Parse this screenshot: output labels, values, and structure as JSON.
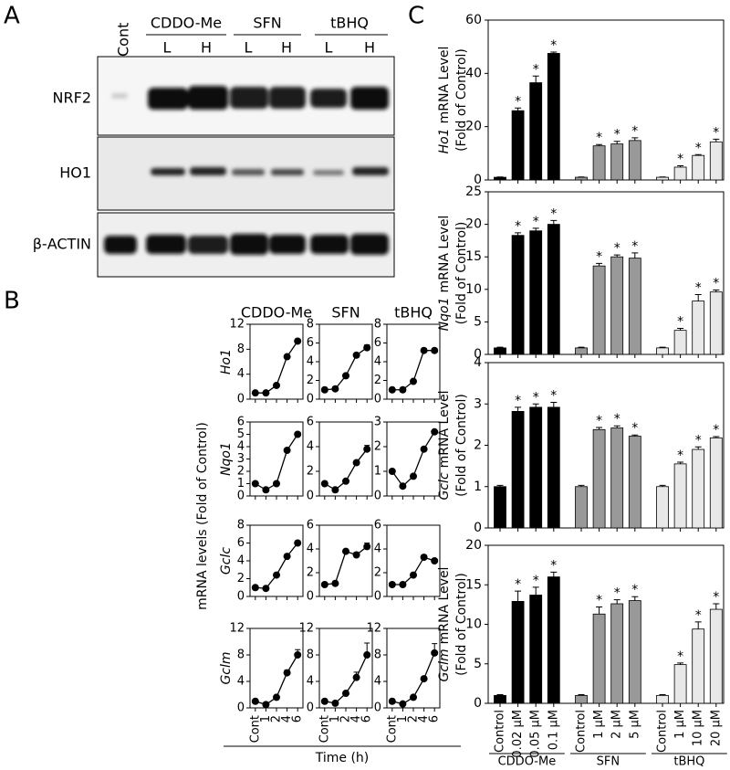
{
  "figure": {
    "panel_labels": [
      "A",
      "B",
      "C"
    ]
  },
  "blot": {
    "control": "Cont",
    "treatments": [
      {
        "name": "CDDO-Me",
        "doses": [
          "L",
          "H"
        ]
      },
      {
        "name": "SFN",
        "doses": [
          "L",
          "H"
        ]
      },
      {
        "name": "tBHQ",
        "doses": [
          "L",
          "H"
        ]
      }
    ],
    "rows": [
      "NRF2",
      "HO1",
      "β-ACTIN"
    ]
  },
  "panel_b": {
    "y_label": "mRNA levels (Fold of Control)",
    "x_label": "Time (h)"
  },
  "chart_data": [
    {
      "type": "line",
      "title": "CDDO-Me",
      "ylabel": "Ho1",
      "categories": [
        null,
        null,
        null,
        null,
        null
      ],
      "values": [
        1,
        1,
        2.2,
        6.8,
        9.3
      ],
      "errors": [
        0.1,
        0.1,
        0.2,
        0.3,
        0.3
      ],
      "ylim": [
        0,
        12
      ],
      "yticks": [
        0,
        4,
        8,
        12
      ],
      "color": "#000000"
    },
    {
      "type": "line",
      "title": "SFN",
      "categories": [
        null,
        null,
        null,
        null,
        null
      ],
      "values": [
        1,
        1.1,
        2.5,
        4.7,
        5.5
      ],
      "errors": [
        0.1,
        0.1,
        0.1,
        0.2,
        0.3
      ],
      "ylim": [
        0,
        8
      ],
      "yticks": [
        0,
        2,
        4,
        6,
        8
      ],
      "color": "#000000"
    },
    {
      "type": "line",
      "title": "tBHQ",
      "categories": [
        null,
        null,
        null,
        null,
        null
      ],
      "values": [
        1,
        1,
        1.9,
        5.2,
        5.2
      ],
      "errors": [
        0.1,
        0.1,
        0.1,
        0.1,
        0.1
      ],
      "ylim": [
        0,
        8
      ],
      "yticks": [
        0,
        2,
        4,
        6,
        8
      ],
      "color": "#000000"
    },
    {
      "type": "line",
      "ylabel": "Nqo1",
      "categories": [
        null,
        null,
        null,
        null,
        null
      ],
      "values": [
        1,
        0.5,
        1,
        3.7,
        5
      ],
      "errors": [
        0.05,
        0.05,
        0.05,
        0.1,
        0.1
      ],
      "ylim": [
        0,
        6
      ],
      "yticks": [
        0,
        1,
        2,
        3,
        4,
        5,
        6
      ],
      "color": "#000000"
    },
    {
      "type": "line",
      "categories": [
        null,
        null,
        null,
        null,
        null
      ],
      "values": [
        1,
        0.5,
        1.2,
        2.7,
        3.8
      ],
      "errors": [
        0.05,
        0.05,
        0.1,
        0.1,
        0.3
      ],
      "ylim": [
        0,
        6
      ],
      "yticks": [
        0,
        2,
        4,
        6
      ],
      "color": "#000000"
    },
    {
      "type": "line",
      "categories": [
        null,
        null,
        null,
        null,
        null
      ],
      "values": [
        1,
        0.4,
        0.8,
        1.9,
        2.6
      ],
      "errors": [
        0.03,
        0.03,
        0.03,
        0.05,
        0.05
      ],
      "ylim": [
        0,
        3
      ],
      "yticks": [
        0,
        1,
        2,
        3
      ],
      "color": "#000000"
    },
    {
      "type": "line",
      "ylabel": "Gclc",
      "categories": [
        null,
        null,
        null,
        null,
        null
      ],
      "values": [
        1,
        0.9,
        2.4,
        4.5,
        6
      ],
      "errors": [
        0.1,
        0.1,
        0.1,
        0.1,
        0.1
      ],
      "ylim": [
        0,
        8
      ],
      "yticks": [
        0,
        2,
        4,
        6,
        8
      ],
      "color": "#000000"
    },
    {
      "type": "line",
      "categories": [
        null,
        null,
        null,
        null,
        null
      ],
      "values": [
        1,
        1.1,
        3.8,
        3.5,
        4.2
      ],
      "errors": [
        0.05,
        0.05,
        0.1,
        0.2,
        0.3
      ],
      "ylim": [
        0,
        6
      ],
      "yticks": [
        0,
        2,
        4,
        6
      ],
      "color": "#000000"
    },
    {
      "type": "line",
      "categories": [
        null,
        null,
        null,
        null,
        null
      ],
      "values": [
        1,
        1,
        1.8,
        3.3,
        3
      ],
      "errors": [
        0.05,
        0.05,
        0.15,
        0.2,
        0.1
      ],
      "ylim": [
        0,
        6
      ],
      "yticks": [
        0,
        2,
        4,
        6
      ],
      "color": "#000000"
    },
    {
      "type": "line",
      "ylabel": "Gclm",
      "categories": [
        "Cont",
        "1",
        "2",
        "4",
        "6"
      ],
      "values": [
        1,
        0.5,
        1.6,
        5.3,
        8
      ],
      "errors": [
        0.1,
        0.1,
        0.2,
        0.4,
        0.8
      ],
      "ylim": [
        0,
        12
      ],
      "yticks": [
        0,
        4,
        8,
        12
      ],
      "color": "#000000"
    },
    {
      "type": "line",
      "categories": [
        "Cont",
        "1",
        "2",
        "4",
        "6"
      ],
      "values": [
        1,
        0.7,
        2.2,
        4.6,
        8
      ],
      "errors": [
        0.1,
        0.1,
        0.2,
        0.8,
        1.8
      ],
      "ylim": [
        0,
        12
      ],
      "yticks": [
        0,
        4,
        8,
        12
      ],
      "color": "#000000"
    },
    {
      "type": "line",
      "categories": [
        "Cont",
        "1",
        "2",
        "4",
        "6"
      ],
      "values": [
        1,
        0.6,
        1.6,
        4.4,
        8.3
      ],
      "errors": [
        0.1,
        0.1,
        0.2,
        0.3,
        1.4
      ],
      "ylim": [
        0,
        12
      ],
      "yticks": [
        0,
        4,
        8,
        12
      ],
      "color": "#000000"
    },
    {
      "type": "bar",
      "ylabel": {
        "gene": "Ho1",
        "text": "mRNA Level",
        "unit": "(Fold of Control)"
      },
      "ylim": [
        0,
        60
      ],
      "yticks": [
        0,
        20,
        40,
        60
      ],
      "groups": [
        {
          "color": "#000000",
          "values": [
            1,
            26,
            36.5,
            47.5
          ],
          "errors": [
            0.1,
            1,
            2.5,
            0.5
          ],
          "annotations": [
            null,
            "*",
            "*",
            "*"
          ]
        },
        {
          "color": "#999999",
          "values": [
            1,
            12.8,
            13.5,
            14.8
          ],
          "errors": [
            0.1,
            0.5,
            1,
            1
          ],
          "annotations": [
            null,
            "*",
            "*",
            "*"
          ]
        },
        {
          "color": "#e8e8e8",
          "values": [
            1,
            4.8,
            9.2,
            14.3
          ],
          "errors": [
            0.1,
            0.5,
            0.3,
            1
          ],
          "annotations": [
            null,
            "*",
            "*",
            "*"
          ]
        }
      ]
    },
    {
      "type": "bar",
      "ylabel": {
        "gene": "Nqo1",
        "text": "mRNA Level",
        "unit": "(Fold of Control)"
      },
      "ylim": [
        0,
        25
      ],
      "yticks": [
        0,
        5,
        10,
        15,
        20,
        25
      ],
      "groups": [
        {
          "color": "#000000",
          "values": [
            1,
            18.3,
            19,
            20
          ],
          "errors": [
            0.1,
            0.4,
            0.4,
            0.6
          ],
          "annotations": [
            null,
            "*",
            "*",
            "*"
          ]
        },
        {
          "color": "#999999",
          "values": [
            1,
            13.6,
            15,
            14.8
          ],
          "errors": [
            0.1,
            0.4,
            0.3,
            0.8
          ],
          "annotations": [
            null,
            "*",
            "*",
            "*"
          ]
        },
        {
          "color": "#e8e8e8",
          "values": [
            1,
            3.7,
            8.2,
            9.6
          ],
          "errors": [
            0.1,
            0.3,
            1,
            0.3
          ],
          "annotations": [
            null,
            "*",
            "*",
            "*"
          ]
        }
      ]
    },
    {
      "type": "bar",
      "ylabel": {
        "gene": "Gclc",
        "text": "mRNA Level",
        "unit": "(Fold of Control)"
      },
      "ylim": [
        0,
        4
      ],
      "yticks": [
        0,
        1,
        2,
        3,
        4
      ],
      "groups": [
        {
          "color": "#000000",
          "values": [
            1,
            2.82,
            2.92,
            2.92
          ],
          "errors": [
            0.03,
            0.1,
            0.08,
            0.12
          ],
          "annotations": [
            null,
            "*",
            "*",
            "*"
          ]
        },
        {
          "color": "#999999",
          "values": [
            1,
            2.38,
            2.42,
            2.22
          ],
          "errors": [
            0.03,
            0.05,
            0.05,
            0.03
          ],
          "annotations": [
            null,
            "*",
            "*",
            "*"
          ]
        },
        {
          "color": "#e8e8e8",
          "values": [
            1,
            1.55,
            1.9,
            2.18
          ],
          "errors": [
            0.03,
            0.04,
            0.06,
            0.03
          ],
          "annotations": [
            null,
            "*",
            "*",
            "*"
          ]
        }
      ]
    },
    {
      "type": "bar",
      "ylabel": {
        "gene": "Gclm",
        "text": "mRNA Level",
        "unit": "(Fold of Control)"
      },
      "ylim": [
        0,
        20
      ],
      "yticks": [
        0,
        5,
        10,
        15,
        20
      ],
      "groups": [
        {
          "name": "CDDO-Me",
          "categories": [
            "Control",
            "0.02 μM",
            "0.05 μM",
            "0.1 μM"
          ],
          "color": "#000000",
          "values": [
            1,
            12.9,
            13.7,
            16
          ],
          "errors": [
            0.1,
            1.3,
            1,
            0.6
          ],
          "annotations": [
            null,
            "*",
            "*",
            "*"
          ]
        },
        {
          "name": "SFN",
          "categories": [
            "Control",
            "1 μM",
            "2 μM",
            "5 μM"
          ],
          "color": "#999999",
          "values": [
            1,
            11.3,
            12.6,
            13
          ],
          "errors": [
            0.1,
            0.9,
            0.5,
            0.5
          ],
          "annotations": [
            null,
            "*",
            "*",
            "*"
          ]
        },
        {
          "name": "tBHQ",
          "categories": [
            "Control",
            "1 μM",
            "10 μM",
            "20 μM"
          ],
          "color": "#e8e8e8",
          "values": [
            1,
            4.9,
            9.4,
            11.9
          ],
          "errors": [
            0.1,
            0.2,
            0.9,
            0.7
          ],
          "annotations": [
            null,
            "*",
            "*",
            "*"
          ]
        }
      ]
    }
  ]
}
